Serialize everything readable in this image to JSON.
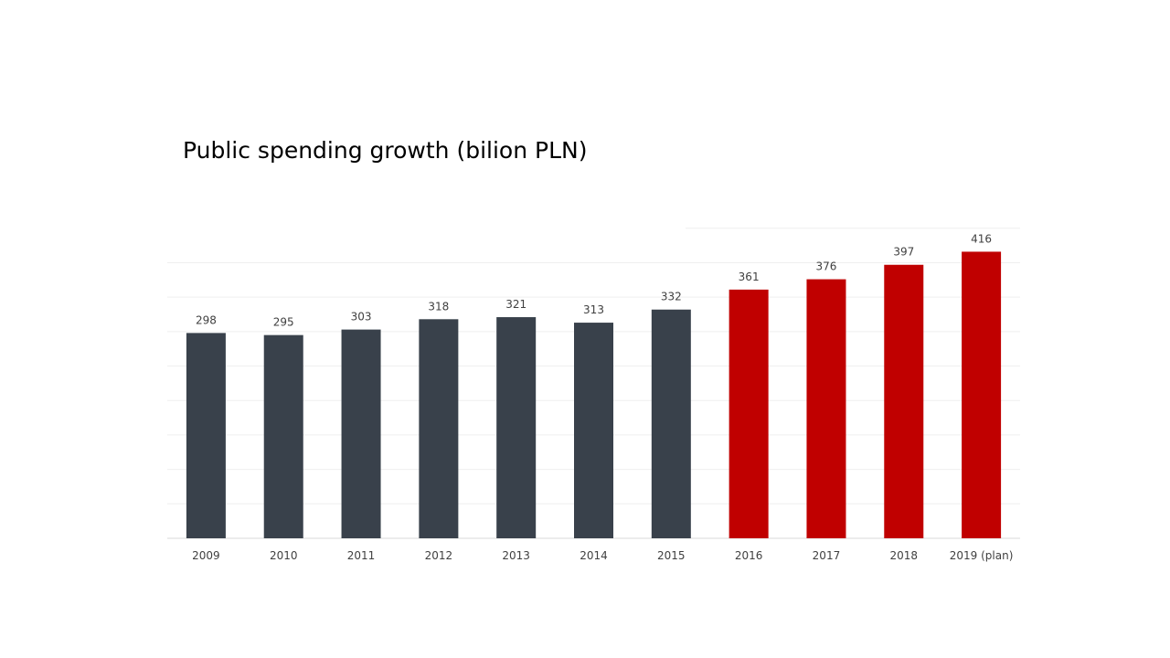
{
  "chart_data": {
    "type": "bar",
    "title": "Public spending growth (bilion PLN)",
    "xlabel": "",
    "ylabel": "",
    "categories": [
      "2009",
      "2010",
      "2011",
      "2012",
      "2013",
      "2014",
      "2015",
      "2016",
      "2017",
      "2018",
      "2019 (plan)"
    ],
    "values": [
      298,
      295,
      303,
      318,
      321,
      313,
      332,
      361,
      376,
      397,
      416
    ],
    "ylim": [
      0,
      450
    ],
    "grid": true,
    "legend": "none",
    "bar_colors": [
      "#39414b",
      "#39414b",
      "#39414b",
      "#39414b",
      "#39414b",
      "#39414b",
      "#39414b",
      "#c00000",
      "#c00000",
      "#c00000",
      "#c00000"
    ]
  }
}
